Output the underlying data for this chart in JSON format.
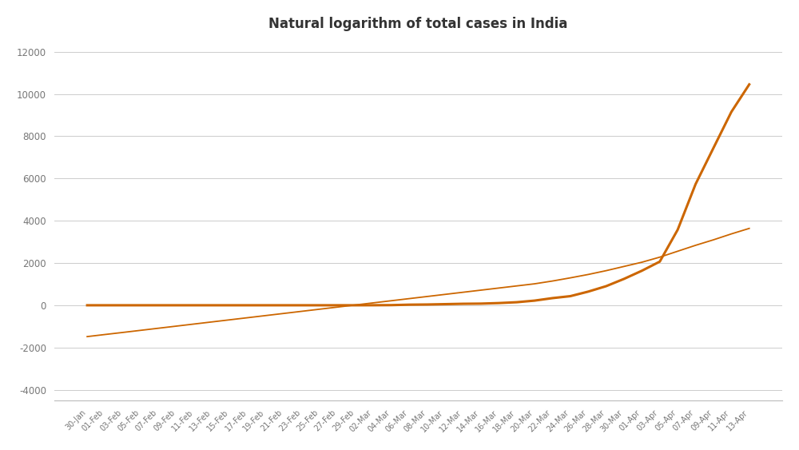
{
  "title": "Natural logarithm of total cases in India",
  "title_fontsize": 12,
  "line_color": "#CC6600",
  "trend_color": "#CC6600",
  "bg_color": "#FFFFFF",
  "plot_bg_color": "#FFFFFF",
  "grid_color": "#CCCCCC",
  "ylim": [
    -4500,
    12500
  ],
  "yticks": [
    -4000,
    -2000,
    0,
    2000,
    4000,
    6000,
    8000,
    10000,
    12000
  ],
  "dates": [
    "30-Jan",
    "01-Feb",
    "03-Feb",
    "05-Feb",
    "07-Feb",
    "09-Feb",
    "11-Feb",
    "13-Feb",
    "15-Feb",
    "17-Feb",
    "19-Feb",
    "21-Feb",
    "23-Feb",
    "25-Feb",
    "27-Feb",
    "29-Feb",
    "02-Mar",
    "04-Mar",
    "06-Mar",
    "08-Mar",
    "10-Mar",
    "12-Mar",
    "14-Mar",
    "16-Mar",
    "18-Mar",
    "20-Mar",
    "22-Mar",
    "24-Mar",
    "26-Mar",
    "28-Mar",
    "30-Mar",
    "01-Apr",
    "03-Apr",
    "05-Apr",
    "07-Apr",
    "09-Apr",
    "11-Apr",
    "13-Apr"
  ],
  "actual_values": [
    3,
    3,
    3,
    3,
    3,
    3,
    3,
    3,
    3,
    3,
    3,
    3,
    3,
    3,
    3,
    3,
    5,
    10,
    31,
    39,
    56,
    73,
    81,
    107,
    147,
    223,
    341,
    434,
    649,
    906,
    1251,
    1637,
    2069,
    3577,
    5734,
    7447,
    9152,
    10453
  ],
  "trend_values": [
    -1480,
    -1380,
    -1282,
    -1182,
    -1082,
    -982,
    -882,
    -782,
    -682,
    -582,
    -482,
    -382,
    -282,
    -182,
    -82,
    18,
    118,
    218,
    318,
    418,
    518,
    618,
    718,
    818,
    918,
    1018,
    1150,
    1300,
    1460,
    1640,
    1840,
    2040,
    2280,
    2560,
    2840,
    3100,
    3380,
    3640
  ]
}
